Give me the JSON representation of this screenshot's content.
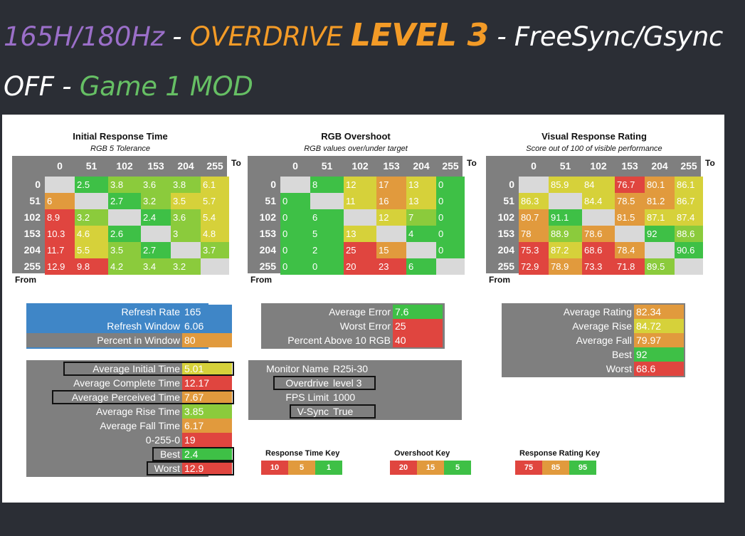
{
  "header": {
    "refresh": "165H/180Hz",
    "sep1": " - ",
    "overdrive": "OVERDRIVE ",
    "level": "LEVEL 3",
    "sep2": " - ",
    "sync": "FreeSync/Gsync",
    "off": "OFF",
    "sep3": " - ",
    "mode": "Game 1 MOD"
  },
  "axis": {
    "to": "To",
    "from": "From"
  },
  "colors": {
    "green": "#3ec046",
    "lightgreen": "#8bcb3c",
    "yellow": "#d6d13a",
    "orange": "#e19a3d",
    "red": "#e0453f",
    "empty": "#d9d9d9",
    "blue": "#3f86c7",
    "gray": "#7f7f7f"
  },
  "chart_data": [
    {
      "type": "heatmap",
      "title": "Initial Response Time",
      "subtitle": "RGB 5 Tolerance",
      "xlabel": "To",
      "ylabel": "From",
      "x": [
        "0",
        "51",
        "102",
        "153",
        "204",
        "255"
      ],
      "y": [
        "0",
        "51",
        "102",
        "153",
        "204",
        "255"
      ],
      "values": [
        [
          null,
          "2.5",
          "3.8",
          "3.6",
          "3.8",
          "6.1"
        ],
        [
          "6",
          null,
          "2.7",
          "3.2",
          "3.5",
          "5.7"
        ],
        [
          "8.9",
          "3.2",
          null,
          "2.4",
          "3.6",
          "5.4"
        ],
        [
          "10.3",
          "4.6",
          "2.6",
          null,
          "3",
          "4.8"
        ],
        [
          "11.7",
          "5.5",
          "3.5",
          "2.7",
          null,
          "3.7"
        ],
        [
          "12.9",
          "9.8",
          "4.2",
          "3.4",
          "3.2",
          null
        ]
      ],
      "cell_colors": [
        [
          "empty",
          "green",
          "lightgreen",
          "lightgreen",
          "lightgreen",
          "yellow"
        ],
        [
          "orange",
          "empty",
          "green",
          "lightgreen",
          "yellow",
          "yellow"
        ],
        [
          "red",
          "lightgreen",
          "empty",
          "green",
          "lightgreen",
          "yellow"
        ],
        [
          "red",
          "yellow",
          "green",
          "empty",
          "lightgreen",
          "yellow"
        ],
        [
          "red",
          "yellow",
          "lightgreen",
          "green",
          "empty",
          "lightgreen"
        ],
        [
          "red",
          "red",
          "lightgreen",
          "lightgreen",
          "lightgreen",
          "empty"
        ]
      ]
    },
    {
      "type": "heatmap",
      "title": "RGB Overshoot",
      "subtitle": "RGB values over/under target",
      "xlabel": "To",
      "ylabel": "From",
      "x": [
        "0",
        "51",
        "102",
        "153",
        "204",
        "255"
      ],
      "y": [
        "0",
        "51",
        "102",
        "153",
        "204",
        "255"
      ],
      "values": [
        [
          null,
          "8",
          "12",
          "17",
          "13",
          "0"
        ],
        [
          "0",
          null,
          "11",
          "16",
          "13",
          "0"
        ],
        [
          "0",
          "6",
          null,
          "12",
          "7",
          "0"
        ],
        [
          "0",
          "5",
          "13",
          null,
          "4",
          "0"
        ],
        [
          "0",
          "2",
          "25",
          "15",
          null,
          "0"
        ],
        [
          "0",
          "0",
          "20",
          "23",
          "6",
          null
        ]
      ],
      "cell_colors": [
        [
          "empty",
          "green",
          "yellow",
          "orange",
          "yellow",
          "green"
        ],
        [
          "green",
          "empty",
          "yellow",
          "orange",
          "yellow",
          "green"
        ],
        [
          "green",
          "green",
          "empty",
          "yellow",
          "lightgreen",
          "green"
        ],
        [
          "green",
          "green",
          "yellow",
          "empty",
          "green",
          "green"
        ],
        [
          "green",
          "green",
          "red",
          "orange",
          "empty",
          "green"
        ],
        [
          "green",
          "green",
          "red",
          "red",
          "green",
          "empty"
        ]
      ]
    },
    {
      "type": "heatmap",
      "title": "Visual Response Rating",
      "subtitle": "Score out of 100 of visible performance",
      "xlabel": "To",
      "ylabel": "From",
      "x": [
        "0",
        "51",
        "102",
        "153",
        "204",
        "255"
      ],
      "y": [
        "0",
        "51",
        "102",
        "153",
        "204",
        "255"
      ],
      "values": [
        [
          null,
          "85.9",
          "84",
          "76.7",
          "80.1",
          "86.1"
        ],
        [
          "86.3",
          null,
          "84.4",
          "78.5",
          "81.2",
          "86.7"
        ],
        [
          "80.7",
          "91.1",
          null,
          "81.5",
          "87.1",
          "87.4"
        ],
        [
          "78",
          "88.9",
          "78.6",
          null,
          "92",
          "88.6"
        ],
        [
          "75.3",
          "87.2",
          "68.6",
          "78.4",
          null,
          "90.6"
        ],
        [
          "72.9",
          "78.9",
          "73.3",
          "71.8",
          "89.5",
          null
        ]
      ],
      "cell_colors": [
        [
          "empty",
          "yellow",
          "yellow",
          "red",
          "orange",
          "yellow"
        ],
        [
          "yellow",
          "empty",
          "yellow",
          "orange",
          "orange",
          "yellow"
        ],
        [
          "orange",
          "green",
          "empty",
          "orange",
          "yellow",
          "yellow"
        ],
        [
          "orange",
          "lightgreen",
          "orange",
          "empty",
          "green",
          "lightgreen"
        ],
        [
          "red",
          "yellow",
          "red",
          "orange",
          "empty",
          "green"
        ],
        [
          "red",
          "orange",
          "red",
          "red",
          "lightgreen",
          "empty"
        ]
      ]
    }
  ],
  "summary_refresh": [
    {
      "label": "Refresh Rate",
      "value": "165",
      "color": "blue"
    },
    {
      "label": "Refresh Window",
      "value": "6.06",
      "color": "blue"
    },
    {
      "label": "Percent in Window",
      "value": "80",
      "color": "orange"
    }
  ],
  "summary_response": [
    {
      "label": "Average Initial Time",
      "value": "5.01",
      "color": "yellow",
      "outlined": true
    },
    {
      "label": "Average Complete Time",
      "value": "12.17",
      "color": "red",
      "outlined": false
    },
    {
      "label": "Average Perceived Time",
      "value": "7.67",
      "color": "orange",
      "outlined": true
    },
    {
      "label": "Average Rise Time",
      "value": "3.85",
      "color": "lightgreen",
      "outlined": false
    },
    {
      "label": "Average Fall Time",
      "value": "6.17",
      "color": "orange",
      "outlined": false
    },
    {
      "label": "0-255-0",
      "value": "19",
      "color": "red",
      "outlined": false
    },
    {
      "label": "Best",
      "value": "2.4",
      "color": "green",
      "outlined": true
    },
    {
      "label": "Worst",
      "value": "12.9",
      "color": "red",
      "outlined": true
    }
  ],
  "summary_error": [
    {
      "label": "Average Error",
      "value": "7.6",
      "color": "green"
    },
    {
      "label": "Worst Error",
      "value": "25",
      "color": "red"
    },
    {
      "label": "Percent Above 10 RGB",
      "value": "40",
      "color": "red"
    }
  ],
  "monitor_info": [
    {
      "label": "Monitor Name",
      "value": "R25i-30",
      "outlined": false
    },
    {
      "label": "Overdrive",
      "value": "level 3",
      "outlined": true
    },
    {
      "label": "FPS Limit",
      "value": "1000",
      "outlined": false
    },
    {
      "label": "V-Sync",
      "value": "True",
      "outlined": true
    }
  ],
  "summary_rating": [
    {
      "label": "Average Rating",
      "value": "82.34",
      "color": "orange"
    },
    {
      "label": "Average Rise",
      "value": "84.72",
      "color": "yellow"
    },
    {
      "label": "Average Fall",
      "value": "79.97",
      "color": "orange"
    },
    {
      "label": "Best",
      "value": "92",
      "color": "green"
    },
    {
      "label": "Worst",
      "value": "68.6",
      "color": "red"
    }
  ],
  "keys": [
    {
      "title": "Response Time Key",
      "items": [
        {
          "v": "10",
          "c": "red"
        },
        {
          "v": "5",
          "c": "orange"
        },
        {
          "v": "1",
          "c": "green"
        }
      ]
    },
    {
      "title": "Overshoot Key",
      "items": [
        {
          "v": "20",
          "c": "red"
        },
        {
          "v": "15",
          "c": "orange"
        },
        {
          "v": "5",
          "c": "green"
        }
      ]
    },
    {
      "title": "Response Rating Key",
      "items": [
        {
          "v": "75",
          "c": "red"
        },
        {
          "v": "85",
          "c": "orange"
        },
        {
          "v": "95",
          "c": "green"
        }
      ]
    }
  ]
}
